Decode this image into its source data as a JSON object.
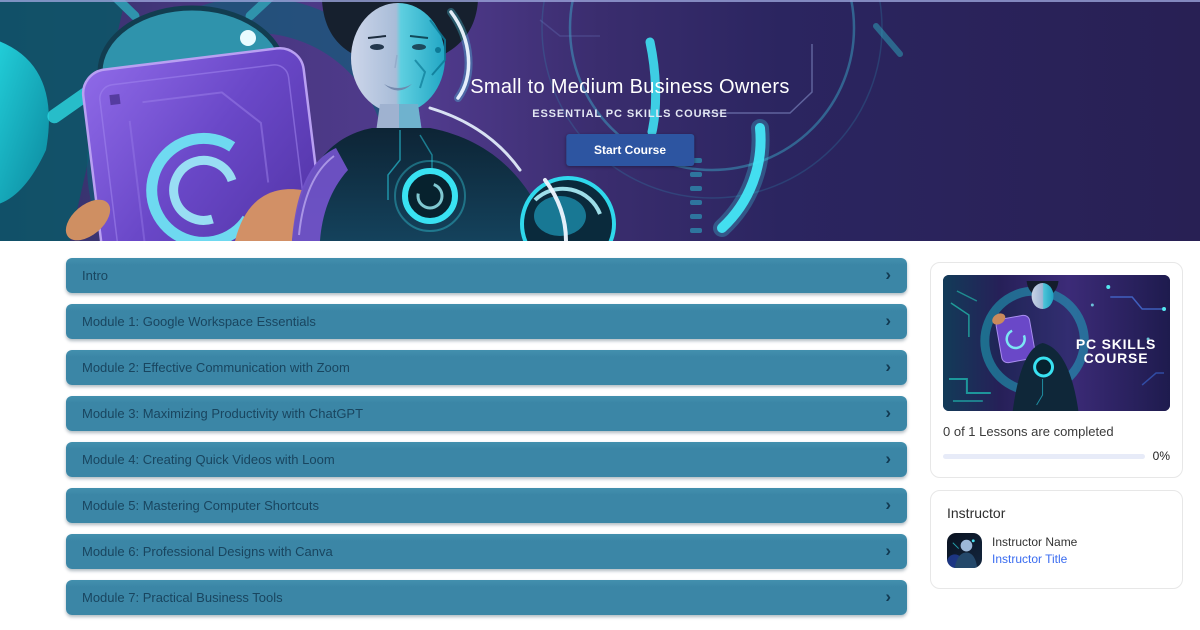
{
  "hero": {
    "title": "Small to Medium Business Owners",
    "subtitle": "ESSENTIAL PC SKILLS COURSE",
    "start_button": "Start Course"
  },
  "icons": {
    "chevron_right": "›"
  },
  "curriculum": {
    "items": [
      {
        "label": "Intro"
      },
      {
        "label": "Module 1: Google Workspace Essentials"
      },
      {
        "label": "Module 2: Effective Communication with Zoom"
      },
      {
        "label": "Module 3: Maximizing Productivity with ChatGPT"
      },
      {
        "label": "Module 4: Creating Quick Videos with Loom"
      },
      {
        "label": "Module 5: Mastering Computer Shortcuts"
      },
      {
        "label": "Module 6: Professional Designs with Canva"
      },
      {
        "label": "Module 7: Practical Business Tools"
      }
    ]
  },
  "sidebar": {
    "course_card": {
      "thumbnail_line1": "PC SKILLS",
      "thumbnail_line2": "COURSE",
      "progress_text": "0 of 1 Lessons are completed",
      "percent_label": "0%",
      "progress_value": 0
    },
    "instructor_card": {
      "heading": "Instructor",
      "name": "Instructor Name",
      "title": "Instructor Title"
    }
  },
  "colors": {
    "module_bar": "#3b86a6",
    "module_text": "#19455f",
    "start_button_bg": "#2d55a1",
    "link_blue": "#3a6cf0",
    "progress_track": "#e7ebf8",
    "hero_bg": "#282054"
  }
}
